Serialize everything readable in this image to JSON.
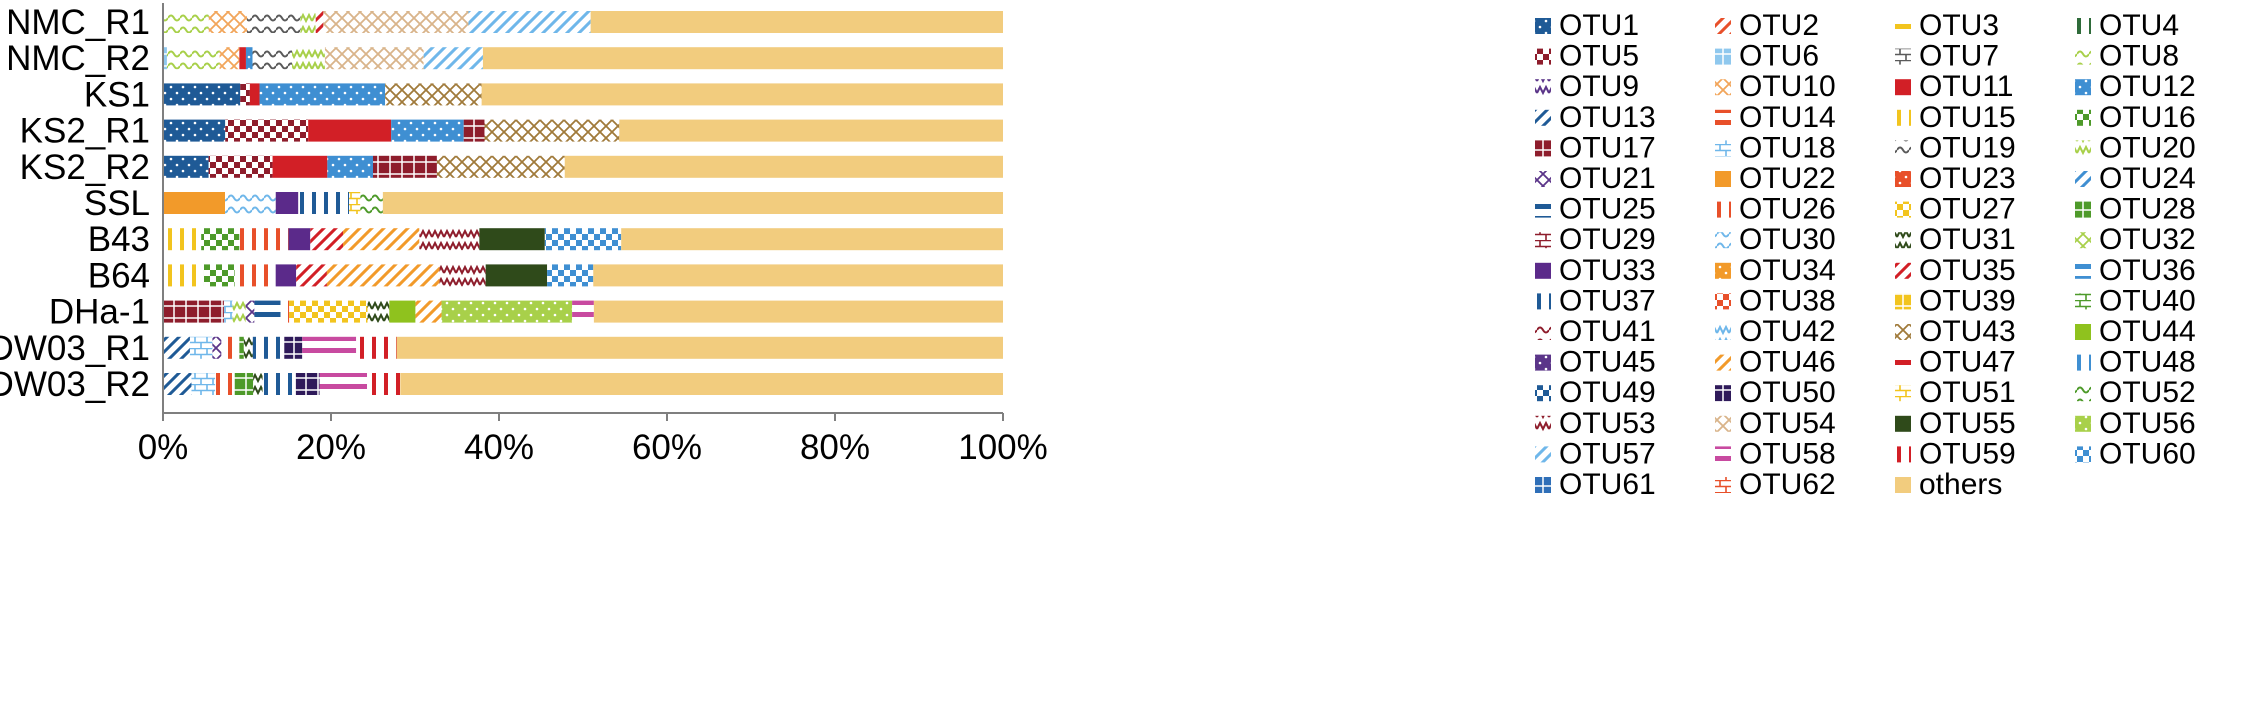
{
  "chart_data": {
    "type": "bar",
    "orientation": "horizontal",
    "stacked": true,
    "percent": true,
    "categories": [
      "NMC_R1",
      "NMC_R2",
      "KS1",
      "KS2_R1",
      "KS2_R2",
      "SSL",
      "B43",
      "B64",
      "DHa-1",
      "DW03_R1",
      "DW03_R2"
    ],
    "xlim": [
      0,
      100
    ],
    "xticks": [
      "0%",
      "20%",
      "40%",
      "60%",
      "80%",
      "100%"
    ],
    "grid": false,
    "legend_position": "right",
    "legend_columns": 4,
    "series": [
      {
        "name": "OTU1",
        "color": "#1f5a96",
        "values": [
          0,
          0,
          4,
          3,
          2.5,
          0,
          0,
          0,
          0,
          0,
          0
        ]
      },
      {
        "name": "OTU2",
        "color": "#e8502a",
        "values": [
          0,
          0,
          0,
          0,
          0,
          0,
          0,
          0,
          0,
          0,
          0
        ]
      },
      {
        "name": "OTU3",
        "color": "#f2c41e",
        "values": [
          0,
          0,
          0,
          0,
          0,
          0,
          0,
          0,
          0,
          0,
          0
        ]
      },
      {
        "name": "OTU4",
        "color": "#2f6b3a",
        "values": [
          0,
          0,
          0,
          0,
          0,
          0,
          0,
          0,
          0,
          0,
          0
        ]
      },
      {
        "name": "OTU5",
        "color": "#8e1d2c",
        "values": [
          0,
          0,
          0.5,
          4,
          3.5,
          0,
          0,
          0,
          0,
          0,
          0
        ]
      },
      {
        "name": "OTU6",
        "color": "#8fc8ee",
        "values": [
          0,
          0.3,
          0,
          0,
          0,
          0,
          0,
          0,
          0,
          0,
          0
        ]
      },
      {
        "name": "OTU7",
        "color": "#5a5a5a",
        "values": [
          0,
          0,
          0,
          0,
          0,
          0,
          0,
          0,
          0,
          0,
          0
        ]
      },
      {
        "name": "OTU8",
        "color": "#a8d04a",
        "values": [
          3,
          4,
          0,
          0,
          0,
          0,
          0,
          0,
          0,
          0,
          0
        ]
      },
      {
        "name": "OTU9",
        "color": "#5b3589",
        "values": [
          0,
          0,
          0,
          0,
          0,
          0,
          0,
          0,
          0,
          0,
          0
        ]
      },
      {
        "name": "OTU10",
        "color": "#f2a55a",
        "values": [
          2.5,
          1.5,
          0,
          0,
          0,
          0,
          0,
          0,
          0,
          0,
          0
        ]
      },
      {
        "name": "OTU11",
        "color": "#d21f26",
        "values": [
          0,
          0.5,
          0.5,
          4,
          3,
          0,
          0,
          0,
          0,
          0,
          0
        ]
      },
      {
        "name": "OTU12",
        "color": "#3f8fd2",
        "values": [
          0,
          0.5,
          6.5,
          3.5,
          2.5,
          0,
          0,
          0,
          0,
          0,
          0
        ]
      },
      {
        "name": "OTU13",
        "color": "#1f5a96",
        "values": [
          0,
          0,
          0,
          0,
          0,
          0,
          0,
          0,
          0,
          3,
          3
        ]
      },
      {
        "name": "OTU14",
        "color": "#e8502a",
        "values": [
          0,
          0,
          0,
          0,
          0,
          0,
          0,
          0,
          0,
          0,
          0
        ]
      },
      {
        "name": "OTU15",
        "color": "#f2c41e",
        "values": [
          0,
          0,
          0,
          0,
          0,
          0,
          3.5,
          4,
          0,
          0,
          0
        ]
      },
      {
        "name": "OTU16",
        "color": "#4e9a2a",
        "values": [
          0,
          0,
          0,
          0,
          0,
          0,
          3.5,
          3,
          0,
          0,
          0
        ]
      },
      {
        "name": "OTU17",
        "color": "#8e1d2c",
        "values": [
          0,
          0,
          0,
          1,
          3.5,
          0,
          0,
          0,
          7,
          0,
          0
        ]
      },
      {
        "name": "OTU18",
        "color": "#6fb7ea",
        "values": [
          0,
          0,
          0,
          0,
          0,
          0,
          0,
          0,
          1,
          2.5,
          2.5
        ]
      },
      {
        "name": "OTU19",
        "color": "#5a5a5a",
        "values": [
          3.5,
          3,
          0,
          0,
          0,
          0,
          0,
          0,
          0,
          0,
          0
        ]
      },
      {
        "name": "OTU20",
        "color": "#a8d04a",
        "values": [
          1,
          2.5,
          0,
          0,
          0,
          0,
          0,
          0,
          1.5,
          0,
          0
        ]
      },
      {
        "name": "OTU21",
        "color": "#5b3589",
        "values": [
          0,
          0,
          0,
          0,
          0,
          0,
          0,
          0,
          1,
          1,
          0
        ]
      },
      {
        "name": "OTU22",
        "color": "#f29a2a",
        "values": [
          0,
          0,
          0,
          0,
          0,
          5.5,
          0,
          0,
          0,
          0,
          0
        ]
      },
      {
        "name": "OTU23",
        "color": "#e8502a",
        "values": [
          0,
          0,
          0,
          0,
          0,
          0,
          0,
          0,
          0,
          0,
          0
        ]
      },
      {
        "name": "OTU24",
        "color": "#3f8fd2",
        "values": [
          0,
          0,
          0,
          0,
          0,
          0,
          0,
          0,
          0,
          0,
          0
        ]
      },
      {
        "name": "OTU25",
        "color": "#1f5a96",
        "values": [
          0,
          0,
          0,
          0,
          0,
          0,
          0,
          0,
          3,
          0,
          0
        ]
      },
      {
        "name": "OTU26",
        "color": "#e8502a",
        "values": [
          0,
          0,
          0,
          0,
          0,
          0,
          4.5,
          4,
          1,
          2,
          2
        ]
      },
      {
        "name": "OTU27",
        "color": "#f2c41e",
        "values": [
          0,
          0,
          0,
          0,
          0,
          0,
          0,
          0,
          9,
          0,
          0
        ]
      },
      {
        "name": "OTU28",
        "color": "#4e9a2a",
        "values": [
          0,
          0,
          0,
          0,
          0,
          0,
          0,
          0,
          0,
          0.5,
          2
        ]
      },
      {
        "name": "OTU29",
        "color": "#8e1d2c",
        "values": [
          0,
          0,
          0,
          0,
          0,
          0,
          0,
          0,
          0,
          0,
          0
        ]
      },
      {
        "name": "OTU30",
        "color": "#6fb7ea",
        "values": [
          0,
          0,
          0,
          0,
          0,
          4.5,
          0,
          0,
          0,
          0,
          0
        ]
      },
      {
        "name": "OTU31",
        "color": "#2f4a1a",
        "values": [
          0,
          0,
          0,
          0,
          0,
          0,
          0,
          0,
          2.5,
          1,
          1
        ]
      },
      {
        "name": "OTU32",
        "color": "#a8d04a",
        "values": [
          0,
          0,
          0,
          0,
          0,
          0,
          0,
          0,
          0,
          0,
          0
        ]
      },
      {
        "name": "OTU33",
        "color": "#5b2a8a",
        "values": [
          0,
          0,
          0,
          0,
          0,
          2,
          2,
          2,
          0,
          0,
          0
        ]
      },
      {
        "name": "OTU34",
        "color": "#f29a2a",
        "values": [
          0,
          0,
          0,
          0,
          0,
          0,
          0,
          0,
          0,
          0,
          0
        ]
      },
      {
        "name": "OTU35",
        "color": "#d21f26",
        "values": [
          0.5,
          0,
          0,
          0,
          0,
          0,
          3,
          3,
          0,
          0,
          0
        ]
      },
      {
        "name": "OTU36",
        "color": "#3f8fd2",
        "values": [
          0,
          0,
          0,
          0,
          0,
          0,
          0,
          0,
          0,
          0,
          0
        ]
      },
      {
        "name": "OTU37",
        "color": "#1f5a96",
        "values": [
          0,
          0,
          0,
          0,
          0,
          4.5,
          0,
          0,
          0,
          3.5,
          3.5
        ]
      },
      {
        "name": "OTU38",
        "color": "#e8502a",
        "values": [
          0,
          0,
          0,
          0,
          0,
          0,
          0,
          0,
          0,
          0,
          0
        ]
      },
      {
        "name": "OTU39",
        "color": "#f2c41e",
        "values": [
          0,
          0,
          0,
          0,
          0,
          0,
          0,
          0,
          0,
          0,
          0
        ]
      },
      {
        "name": "OTU40",
        "color": "#4e9a2a",
        "values": [
          0,
          0,
          0,
          0,
          0,
          0,
          0,
          0,
          0,
          0,
          0
        ]
      },
      {
        "name": "OTU41",
        "color": "#8e1d2c",
        "values": [
          0,
          0,
          0,
          0,
          0,
          0,
          0,
          0,
          0,
          0,
          0
        ]
      },
      {
        "name": "OTU42",
        "color": "#6fb7ea",
        "values": [
          0,
          0,
          0,
          0,
          0,
          0,
          0,
          0,
          0,
          0,
          0
        ]
      },
      {
        "name": "OTU43",
        "color": "#a07a3a",
        "values": [
          0,
          0,
          5,
          6.5,
          7,
          0,
          0,
          0,
          0,
          0,
          0
        ]
      },
      {
        "name": "OTU44",
        "color": "#8fc21e",
        "values": [
          0,
          0,
          0,
          0,
          0,
          0,
          0,
          0,
          3,
          0,
          0
        ]
      },
      {
        "name": "OTU45",
        "color": "#5b3589",
        "values": [
          0,
          0,
          0,
          0,
          0,
          0,
          0,
          0,
          0,
          0,
          0
        ]
      },
      {
        "name": "OTU46",
        "color": "#f29a2a",
        "values": [
          0,
          0,
          0,
          0,
          0,
          0,
          7,
          11,
          3,
          0,
          0
        ]
      },
      {
        "name": "OTU47",
        "color": "#d21f26",
        "values": [
          0,
          0,
          0,
          0,
          0,
          0,
          0,
          0,
          0,
          0,
          0
        ]
      },
      {
        "name": "OTU48",
        "color": "#3f8fd2",
        "values": [
          0,
          0,
          0,
          0,
          0,
          0,
          0,
          0,
          0,
          0,
          0
        ]
      },
      {
        "name": "OTU49",
        "color": "#1f5a96",
        "values": [
          0,
          0,
          0,
          0,
          0,
          0,
          0,
          0,
          0,
          0,
          0
        ]
      },
      {
        "name": "OTU50",
        "color": "#2f1a5a",
        "values": [
          0,
          0,
          0,
          0,
          0,
          0,
          0,
          0,
          0,
          2,
          2.5
        ]
      },
      {
        "name": "OTU51",
        "color": "#f2c41e",
        "values": [
          0,
          0,
          0,
          0,
          0,
          1,
          0,
          0,
          0,
          0,
          0
        ]
      },
      {
        "name": "OTU52",
        "color": "#4e9a2a",
        "values": [
          0,
          0,
          0,
          0,
          0,
          2,
          0,
          0,
          0,
          0,
          0
        ]
      },
      {
        "name": "OTU53",
        "color": "#8e1d2c",
        "values": [
          0,
          0,
          0,
          0,
          0,
          0,
          5.5,
          4.5,
          0,
          0,
          0
        ]
      },
      {
        "name": "OTU54",
        "color": "#d9b48a",
        "values": [
          9.5,
          7.5,
          0,
          0,
          0,
          0,
          0,
          0,
          0,
          0,
          0
        ]
      },
      {
        "name": "OTU55",
        "color": "#2f4a1a",
        "values": [
          0,
          0,
          0,
          0,
          0,
          0,
          6,
          6,
          0,
          0,
          0
        ]
      },
      {
        "name": "OTU56",
        "color": "#a8d04a",
        "values": [
          0,
          0,
          0,
          0,
          0,
          0,
          0,
          0,
          15,
          0,
          0
        ]
      },
      {
        "name": "OTU57",
        "color": "#6fb7ea",
        "values": [
          8,
          4.5,
          0,
          0,
          0,
          0,
          0,
          0,
          0,
          0,
          0
        ]
      },
      {
        "name": "OTU58",
        "color": "#c84aa0",
        "values": [
          0,
          0,
          0,
          0,
          0,
          0,
          0,
          0,
          2.5,
          6,
          5
        ]
      },
      {
        "name": "OTU59",
        "color": "#d21f26",
        "values": [
          0,
          0,
          0,
          0,
          0,
          0,
          0,
          0,
          0,
          4.5,
          3.5
        ]
      },
      {
        "name": "OTU60",
        "color": "#3f8fd2",
        "values": [
          0,
          0,
          0,
          0,
          0,
          0,
          7,
          4.5,
          0,
          0,
          0
        ]
      },
      {
        "name": "OTU61",
        "color": "#2f6fb8",
        "values": [
          0,
          0,
          0,
          0,
          0,
          0,
          0,
          0,
          0,
          0,
          0
        ]
      },
      {
        "name": "OTU62",
        "color": "#e8502a",
        "values": [
          0,
          0,
          0,
          0,
          0,
          0,
          0,
          0,
          0,
          0,
          0
        ]
      },
      {
        "name": "others",
        "color": "#f2cc7e",
        "values": [
          27,
          39.5,
          27,
          18.5,
          24,
          55,
          35,
          40,
          47,
          67.5,
          63.5
        ]
      }
    ]
  }
}
